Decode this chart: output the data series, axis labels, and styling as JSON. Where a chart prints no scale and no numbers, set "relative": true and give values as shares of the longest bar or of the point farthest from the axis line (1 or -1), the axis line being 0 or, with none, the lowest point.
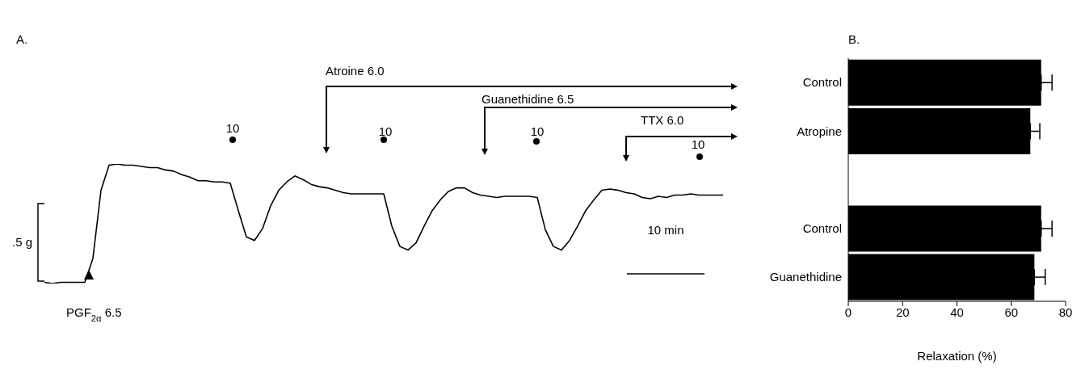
{
  "chart_data": [
    {
      "type": "line",
      "title": "A.",
      "relative": true,
      "color": "#000000",
      "marker": "none",
      "categories": [
        null,
        null,
        null,
        null,
        null,
        null,
        null,
        null,
        null,
        null,
        null,
        null,
        null,
        null,
        null,
        null,
        null,
        null,
        null,
        null,
        null,
        null,
        null,
        null,
        null,
        null,
        null,
        null,
        null,
        null,
        null,
        null,
        null,
        null,
        null,
        null,
        null,
        null,
        null,
        null,
        null,
        null,
        null,
        null,
        null,
        null,
        null,
        null,
        null,
        null,
        null,
        null,
        null,
        null,
        null,
        null,
        null,
        null,
        null,
        null,
        null,
        null,
        null,
        null,
        null,
        null,
        null,
        null,
        null,
        null,
        null,
        null,
        null,
        null,
        null,
        null,
        null,
        null,
        null,
        null,
        null,
        null,
        null,
        null,
        null
      ],
      "values": [
        0.01,
        0,
        0.01,
        0.01,
        0.01,
        0.01,
        0.21,
        0.78,
        0.99,
        1,
        0.99,
        0.99,
        0.98,
        0.97,
        0.97,
        0.95,
        0.94,
        0.91,
        0.89,
        0.86,
        0.86,
        0.85,
        0.85,
        0.84,
        0.61,
        0.39,
        0.36,
        0.46,
        0.65,
        0.78,
        0.85,
        0.9,
        0.87,
        0.83,
        0.81,
        0.8,
        0.78,
        0.76,
        0.75,
        0.75,
        0.75,
        0.75,
        0.75,
        0.48,
        0.31,
        0.28,
        0.34,
        0.48,
        0.61,
        0.7,
        0.77,
        0.8,
        0.8,
        0.76,
        0.74,
        0.73,
        0.72,
        0.73,
        0.73,
        0.73,
        0.73,
        0.72,
        0.45,
        0.31,
        0.28,
        0.36,
        0.48,
        0.61,
        0.7,
        0.78,
        0.79,
        0.78,
        0.76,
        0.75,
        0.72,
        0.71,
        0.73,
        0.72,
        0.74,
        0.74,
        0.75,
        0.74,
        0.74,
        0.74,
        0.74
      ],
      "annotations": [
        "10",
        "10",
        "10",
        "10",
        "Atroine 6.0",
        "Guanethidine 6.5",
        "TTX 6.0",
        "PGF$_{2α}$ 6.5",
        ".5 g",
        "10 min"
      ]
    },
    {
      "type": "bar",
      "title": "B.",
      "orientation": "horizontal",
      "color": "#000000",
      "categories": [
        "Control",
        "Atropine",
        null,
        "Control",
        "Guanethidine"
      ],
      "values": [
        71,
        67,
        null,
        71,
        68.5
      ],
      "errors": [
        [
          71,
          75
        ],
        [
          67,
          70.5
        ],
        null,
        [
          71,
          75
        ],
        [
          68.5,
          72.5
        ]
      ],
      "xlim": [
        0,
        80
      ],
      "xticks": [
        0,
        20,
        40,
        60,
        80
      ],
      "xlabel": "Relaxation (%)"
    }
  ]
}
